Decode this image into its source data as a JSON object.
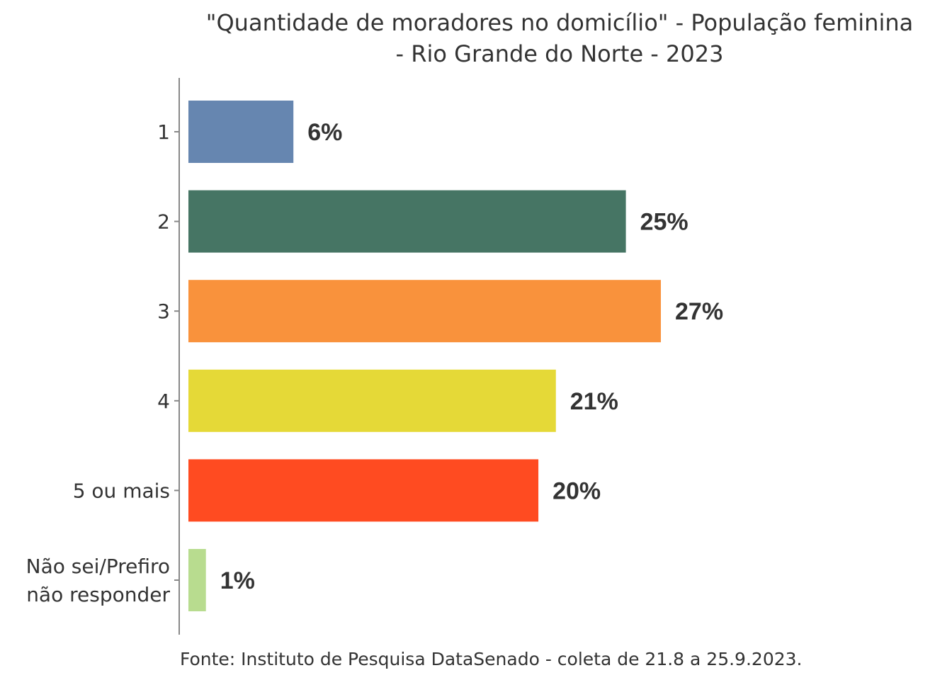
{
  "chart_data": {
    "type": "bar",
    "orientation": "horizontal",
    "title": "\"Quantidade de moradores no domicílio\" - População feminina - Rio Grande do Norte - 2023",
    "title_lines": [
      "\"Quantidade de moradores no domicílio\" - População feminina",
      "- Rio Grande do Norte - 2023"
    ],
    "categories": [
      "1",
      "2",
      "3",
      "4",
      "5 ou mais",
      "Não sei/Prefiro não responder"
    ],
    "category_lines": [
      [
        "1"
      ],
      [
        "2"
      ],
      [
        "3"
      ],
      [
        "4"
      ],
      [
        "5 ou mais"
      ],
      [
        "Não sei/Prefiro",
        "não responder"
      ]
    ],
    "values": [
      6,
      25,
      27,
      21,
      20,
      1
    ],
    "value_labels": [
      "6%",
      "25%",
      "27%",
      "21%",
      "20%",
      "1%"
    ],
    "colors": [
      "#6686b0",
      "#467564",
      "#f9923c",
      "#e5d937",
      "#ff4b21",
      "#b8dc8f"
    ],
    "unit": "%",
    "xlabel": "",
    "ylabel": "",
    "xlim": [
      0,
      27
    ],
    "grid": false,
    "legend": "none",
    "caption": "Fonte: Instituto de Pesquisa DataSenado - coleta de 21.8 a 25.9.2023."
  }
}
